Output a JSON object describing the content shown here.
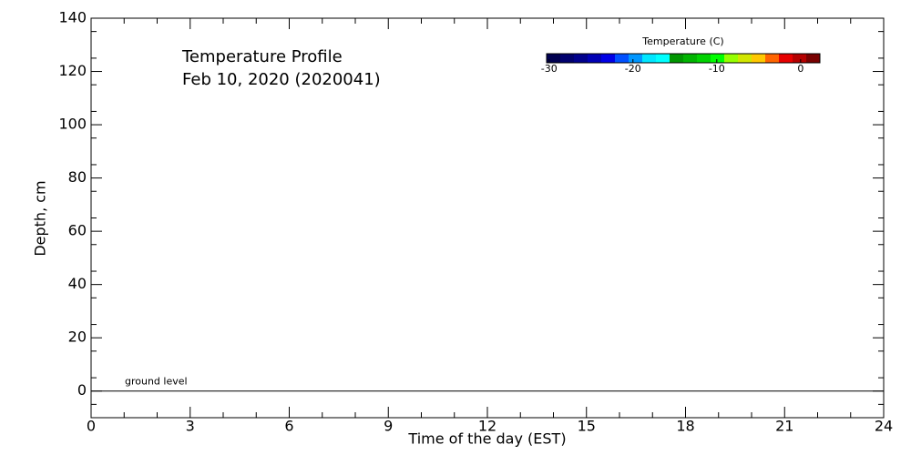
{
  "chart_data": {
    "type": "heatmap",
    "title": [
      "Temperature Profile",
      "Feb 10, 2020 (2020041)"
    ],
    "xlabel": "Time of the day (EST)",
    "ylabel": "Depth, cm",
    "xlim": [
      0,
      24
    ],
    "xticks": [
      0,
      3,
      6,
      9,
      12,
      15,
      18,
      21,
      24
    ],
    "xminorticks": [
      1,
      2,
      4,
      5,
      7,
      8,
      10,
      11,
      13,
      14,
      16,
      17,
      19,
      20,
      22,
      23
    ],
    "ylim": [
      -10,
      140
    ],
    "yticks": [
      0,
      20,
      40,
      60,
      80,
      100,
      120,
      140
    ],
    "yminorticks": [
      -5,
      5,
      15,
      25,
      35,
      45,
      55,
      65,
      75,
      85,
      95,
      105,
      115,
      125,
      135
    ],
    "annotations": [
      {
        "text": "ground level",
        "y": 0
      }
    ],
    "colorbar": {
      "title": "Temperature (C)",
      "clim": [
        -30.3,
        2.3
      ],
      "ticks": [
        -30,
        -20,
        -10,
        0
      ],
      "colors": [
        "#000050",
        "#00006e",
        "#00008c",
        "#0000b4",
        "#0000e6",
        "#0050ff",
        "#0096ff",
        "#00e6ff",
        "#00ffff",
        "#009600",
        "#00b400",
        "#00d200",
        "#00ff00",
        "#96ff00",
        "#d2e600",
        "#ffc800",
        "#ff6400",
        "#e60000",
        "#b40000",
        "#780000"
      ]
    }
  }
}
